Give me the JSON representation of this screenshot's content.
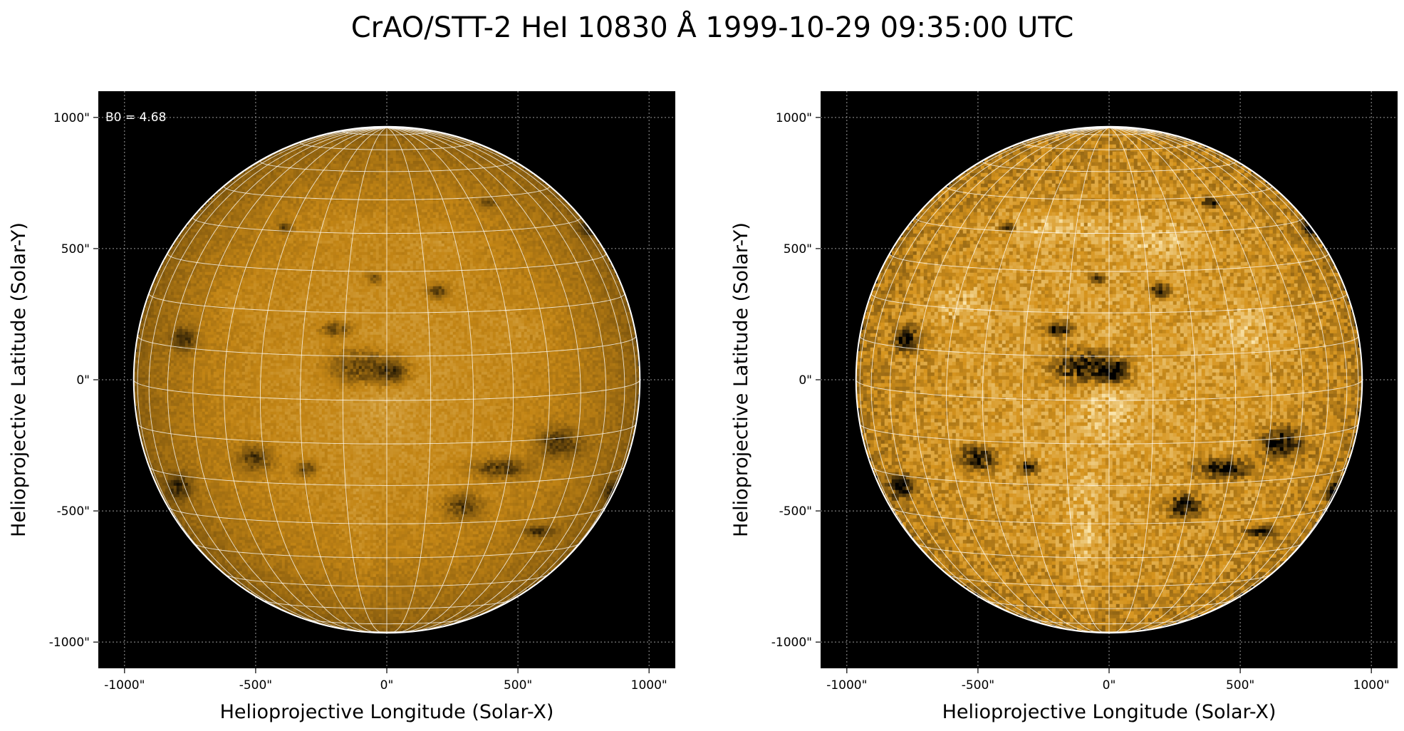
{
  "figure": {
    "title": "CrAO/STT-2 HeI 10830 Å 1999-10-29 09:35:00 UTC"
  },
  "colors": {
    "background": "#000000",
    "disk_base": "#c98a17",
    "disk_bright": "#f3cf7e",
    "disk_dark": "#1a0e00",
    "grid": "#ffffff",
    "coord_grid": "#9a9a9a"
  },
  "panels": [
    {
      "name": "left",
      "annotation": "B0 = 4.68",
      "xlabel": "Helioprojective Longitude (Solar-X)",
      "ylabel": "Helioprojective Latitude (Solar-Y)",
      "xticks": [
        "-1000\"",
        "-500\"",
        "0\"",
        "500\"",
        "1000\""
      ],
      "yticks": [
        "1000\"",
        "500\"",
        "0\"",
        "-500\"",
        "-1000\""
      ],
      "xlim": [
        -1100,
        1100
      ],
      "ylim": [
        -1100,
        1100
      ],
      "solar_radius_arcsec": 965,
      "contrast": "low"
    },
    {
      "name": "right",
      "annotation": "",
      "xlabel": "Helioprojective Longitude (Solar-X)",
      "ylabel": "Helioprojective Latitude (Solar-Y)",
      "xticks": [
        "-1000\"",
        "-500\"",
        "0\"",
        "500\"",
        "1000\""
      ],
      "yticks": [
        "1000\"",
        "500\"",
        "0\"",
        "-500\"",
        "-1000\""
      ],
      "xlim": [
        -1100,
        1100
      ],
      "ylim": [
        -1100,
        1100
      ],
      "solar_radius_arcsec": 965,
      "contrast": "high"
    }
  ],
  "grid": {
    "b0_deg": 4.68,
    "lat_step_deg": 10,
    "lon_step_deg": 10
  }
}
